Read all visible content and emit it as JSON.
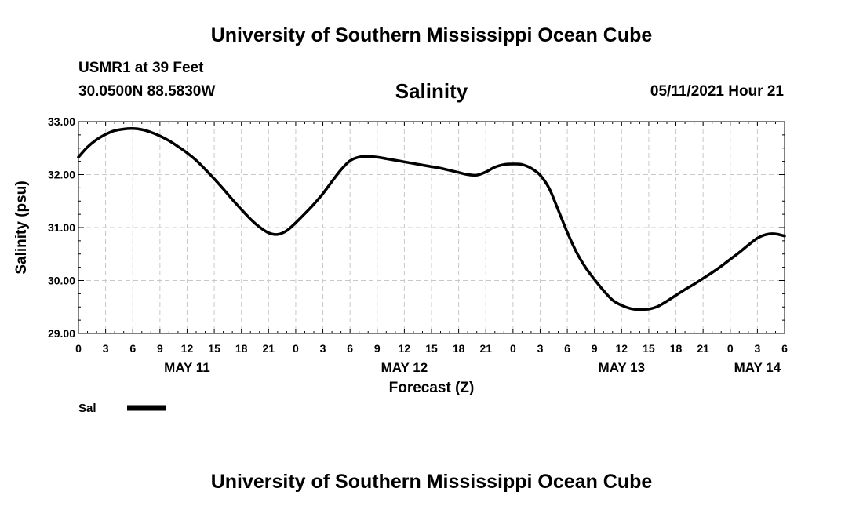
{
  "header": {
    "title": "University of Southern Mississippi Ocean Cube",
    "station": "USMR1 at 39 Feet",
    "coords": "30.0500N  88.5830W",
    "chart_title": "Salinity",
    "datetime": "05/11/2021 Hour 21"
  },
  "footer": {
    "title": "University of Southern Mississippi Ocean Cube"
  },
  "chart_data": {
    "type": "line",
    "title": "Salinity",
    "xlabel": "Forecast (Z)",
    "ylabel": "Salinity (psu)",
    "ylim": [
      29.0,
      33.0
    ],
    "y_ticks": [
      "29.00",
      "30.00",
      "31.00",
      "32.00",
      "33.00"
    ],
    "xlim_hours": [
      0,
      78
    ],
    "x_tick_labels": [
      "0",
      "3",
      "6",
      "9",
      "12",
      "15",
      "18",
      "21",
      "0",
      "3",
      "6",
      "9",
      "12",
      "15",
      "18",
      "21",
      "0",
      "3",
      "6",
      "9",
      "12",
      "15",
      "18",
      "21",
      "0",
      "3",
      "6"
    ],
    "date_labels": [
      {
        "label": "MAY 11",
        "hour": 12
      },
      {
        "label": "MAY 12",
        "hour": 36
      },
      {
        "label": "MAY 13",
        "hour": 60
      },
      {
        "label": "MAY 14",
        "hour": 75
      }
    ],
    "grid": true,
    "legend": [
      {
        "name": "Sal",
        "color": "#000000"
      }
    ],
    "series": [
      {
        "name": "Sal",
        "x_hours": [
          0,
          1,
          2,
          3,
          4,
          5,
          6,
          7,
          8,
          9,
          10,
          11,
          12,
          13,
          14,
          15,
          16,
          17,
          18,
          19,
          20,
          21,
          22,
          23,
          24,
          25,
          26,
          27,
          28,
          29,
          30,
          31,
          32,
          33,
          34,
          35,
          36,
          37,
          38,
          39,
          40,
          41,
          42,
          43,
          44,
          45,
          46,
          47,
          48,
          49,
          50,
          51,
          52,
          53,
          54,
          55,
          56,
          57,
          58,
          59,
          60,
          61,
          62,
          63,
          64,
          65,
          66,
          67,
          68,
          69,
          70,
          71,
          72,
          73,
          74,
          75,
          76,
          77,
          78
        ],
        "values": [
          32.33,
          32.52,
          32.66,
          32.76,
          32.83,
          32.86,
          32.87,
          32.85,
          32.8,
          32.73,
          32.64,
          32.53,
          32.41,
          32.27,
          32.1,
          31.92,
          31.73,
          31.53,
          31.34,
          31.16,
          31.01,
          30.9,
          30.87,
          30.94,
          31.09,
          31.26,
          31.44,
          31.64,
          31.87,
          32.09,
          32.26,
          32.33,
          32.34,
          32.33,
          32.3,
          32.27,
          32.24,
          32.21,
          32.18,
          32.15,
          32.12,
          32.08,
          32.04,
          32.0,
          31.99,
          32.05,
          32.14,
          32.19,
          32.2,
          32.19,
          32.12,
          31.99,
          31.74,
          31.33,
          30.91,
          30.54,
          30.25,
          30.02,
          29.81,
          29.63,
          29.53,
          29.47,
          29.45,
          29.46,
          29.51,
          29.61,
          29.72,
          29.83,
          29.93,
          30.04,
          30.15,
          30.27,
          30.4,
          30.53,
          30.67,
          30.8,
          30.87,
          30.88,
          30.84
        ]
      }
    ]
  }
}
